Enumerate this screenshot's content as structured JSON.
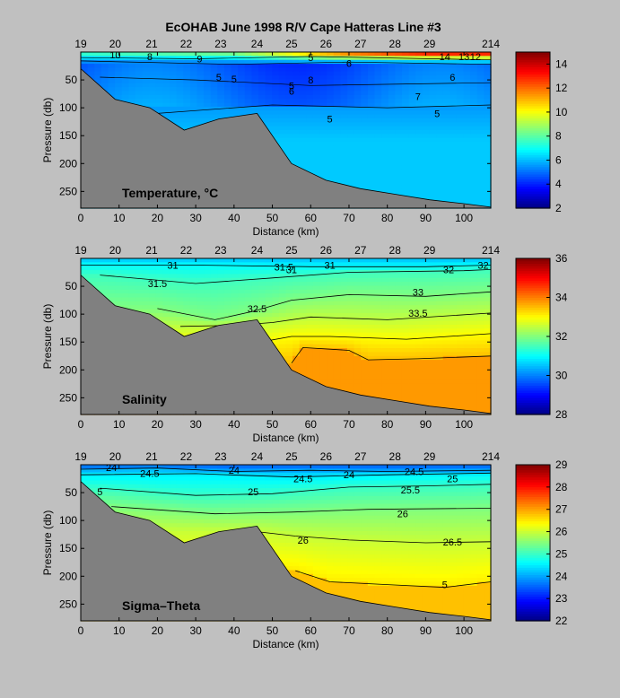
{
  "figure": {
    "title": "EcOHAB   June 1998   R/V Cape Hatteras   Line #3"
  },
  "chart_data": [
    {
      "type": "heatmap",
      "panel_label": "Temperature, °C",
      "xlabel": "Distance (km)",
      "ylabel": "Pressure (db)",
      "xlim": [
        0,
        107
      ],
      "ylim": [
        280,
        0
      ],
      "x_ticks": [
        0,
        10,
        20,
        30,
        40,
        50,
        60,
        70,
        80,
        90,
        100
      ],
      "y_ticks": [
        50,
        100,
        150,
        200,
        250
      ],
      "stations": [
        {
          "label": "19",
          "x": 0
        },
        {
          "label": "20",
          "x": 9
        },
        {
          "label": "21",
          "x": 18.5
        },
        {
          "label": "22",
          "x": 27.5
        },
        {
          "label": "23",
          "x": 36.5
        },
        {
          "label": "24",
          "x": 46
        },
        {
          "label": "25",
          "x": 55
        },
        {
          "label": "26",
          "x": 64
        },
        {
          "label": "27",
          "x": 73
        },
        {
          "label": "28",
          "x": 82
        },
        {
          "label": "29",
          "x": 91
        },
        {
          "label": "214",
          "x": 107
        }
      ],
      "colorbar": {
        "min": 2,
        "max": 15,
        "ticks": [
          2,
          4,
          6,
          8,
          10,
          12,
          14
        ]
      },
      "bottom_profile": [
        [
          0,
          30
        ],
        [
          9,
          85
        ],
        [
          18,
          100
        ],
        [
          27,
          140
        ],
        [
          36,
          120
        ],
        [
          46,
          110
        ],
        [
          55,
          200
        ],
        [
          64,
          230
        ],
        [
          73,
          245
        ],
        [
          82,
          255
        ],
        [
          91,
          265
        ],
        [
          100,
          272
        ],
        [
          107,
          278
        ]
      ],
      "surface_layer": {
        "depths": [
          0,
          2,
          4,
          6,
          8,
          10,
          12,
          14,
          16,
          18,
          20
        ],
        "x": [
          0,
          20,
          40,
          55,
          70,
          90,
          107
        ],
        "surface_values": [
          8,
          8.5,
          9,
          11,
          13,
          14.5,
          14.5
        ]
      },
      "contour_labels": [
        "8",
        "10",
        "9",
        "5",
        "5",
        "5",
        "6",
        "5",
        "6",
        "8",
        "5",
        "6",
        "7",
        "5",
        "14",
        "13",
        "12"
      ]
    },
    {
      "type": "heatmap",
      "panel_label": "Salinity",
      "xlabel": "Distance (km)",
      "ylabel": "Pressure (db)",
      "xlim": [
        0,
        107
      ],
      "ylim": [
        280,
        0
      ],
      "x_ticks": [
        0,
        10,
        20,
        30,
        40,
        50,
        60,
        70,
        80,
        90,
        100
      ],
      "y_ticks": [
        50,
        100,
        150,
        200,
        250
      ],
      "stations": [
        {
          "label": "19",
          "x": 0
        },
        {
          "label": "20",
          "x": 9
        },
        {
          "label": "21",
          "x": 18.5
        },
        {
          "label": "22",
          "x": 27.5
        },
        {
          "label": "23",
          "x": 36.5
        },
        {
          "label": "24",
          "x": 46
        },
        {
          "label": "25",
          "x": 55
        },
        {
          "label": "26",
          "x": 64
        },
        {
          "label": "27",
          "x": 73
        },
        {
          "label": "28",
          "x": 82
        },
        {
          "label": "29",
          "x": 91
        },
        {
          "label": "214",
          "x": 107
        }
      ],
      "colorbar": {
        "min": 28,
        "max": 36,
        "ticks": [
          28,
          30,
          32,
          34,
          36
        ]
      },
      "contours": [
        {
          "level": 31,
          "points": [
            [
              0,
              12
            ],
            [
              30,
              12
            ],
            [
              60,
              15
            ],
            [
              90,
              15
            ],
            [
              107,
              12
            ]
          ]
        },
        {
          "level": 31.5,
          "points": [
            [
              5,
              30
            ],
            [
              30,
              45
            ],
            [
              50,
              35
            ],
            [
              70,
              25
            ],
            [
              100,
              22
            ],
            [
              107,
              20
            ]
          ]
        },
        {
          "level": 32,
          "points": [
            [
              20,
              90
            ],
            [
              35,
              110
            ],
            [
              45,
              95
            ],
            [
              55,
              75
            ],
            [
              70,
              65
            ],
            [
              90,
              68
            ],
            [
              107,
              60
            ]
          ]
        },
        {
          "level": 32.5,
          "points": [
            [
              26,
              122
            ],
            [
              40,
              120
            ],
            [
              50,
              115
            ],
            [
              60,
              105
            ],
            [
              80,
              110
            ],
            [
              107,
              98
            ]
          ]
        },
        {
          "level": 33,
          "points": [
            [
              47,
              150
            ],
            [
              55,
              140
            ],
            [
              65,
              140
            ],
            [
              85,
              145
            ],
            [
              107,
              135
            ]
          ]
        },
        {
          "level": 33.5,
          "points": [
            [
              55,
              188
            ],
            [
              58,
              160
            ],
            [
              70,
              165
            ],
            [
              75,
              182
            ],
            [
              88,
              180
            ],
            [
              107,
              175
            ]
          ]
        }
      ],
      "contour_labels": [
        "31",
        "31.5",
        "31",
        "31.5",
        "31",
        "32",
        "32",
        "32.5",
        "33",
        "33.5"
      ],
      "bottom_profile": [
        [
          0,
          30
        ],
        [
          9,
          85
        ],
        [
          18,
          100
        ],
        [
          27,
          140
        ],
        [
          36,
          120
        ],
        [
          46,
          110
        ],
        [
          55,
          200
        ],
        [
          64,
          230
        ],
        [
          73,
          245
        ],
        [
          82,
          255
        ],
        [
          91,
          265
        ],
        [
          100,
          272
        ],
        [
          107,
          278
        ]
      ]
    },
    {
      "type": "heatmap",
      "panel_label": "Sigma–Theta",
      "xlabel": "Distance (km)",
      "ylabel": "Pressure (db)",
      "xlim": [
        0,
        107
      ],
      "ylim": [
        280,
        0
      ],
      "x_ticks": [
        0,
        10,
        20,
        30,
        40,
        50,
        60,
        70,
        80,
        90,
        100
      ],
      "y_ticks": [
        50,
        100,
        150,
        200,
        250
      ],
      "stations": [
        {
          "label": "19",
          "x": 0
        },
        {
          "label": "20",
          "x": 9
        },
        {
          "label": "21",
          "x": 18.5
        },
        {
          "label": "22",
          "x": 27.5
        },
        {
          "label": "23",
          "x": 36.5
        },
        {
          "label": "24",
          "x": 46
        },
        {
          "label": "25",
          "x": 55
        },
        {
          "label": "26",
          "x": 64
        },
        {
          "label": "27",
          "x": 73
        },
        {
          "label": "28",
          "x": 82
        },
        {
          "label": "29",
          "x": 91
        },
        {
          "label": "214",
          "x": 107
        }
      ],
      "colorbar": {
        "min": 22,
        "max": 29,
        "ticks": [
          22,
          23,
          24,
          25,
          26,
          27,
          28,
          29
        ]
      },
      "contours": [
        {
          "level": 24,
          "points": [
            [
              0,
              8
            ],
            [
              20,
              6
            ],
            [
              40,
              12
            ],
            [
              60,
              10
            ],
            [
              80,
              12
            ],
            [
              107,
              10
            ]
          ]
        },
        {
          "level": 24.5,
          "points": [
            [
              0,
              18
            ],
            [
              30,
              16
            ],
            [
              55,
              22
            ],
            [
              80,
              18
            ],
            [
              107,
              15
            ]
          ]
        },
        {
          "level": 25,
          "points": [
            [
              5,
              42
            ],
            [
              30,
              55
            ],
            [
              50,
              52
            ],
            [
              70,
              40
            ],
            [
              90,
              38
            ],
            [
              107,
              35
            ]
          ]
        },
        {
          "level": 25.5,
          "points": [
            [
              8,
              75
            ],
            [
              35,
              88
            ],
            [
              55,
              85
            ],
            [
              75,
              80
            ],
            [
              107,
              78
            ]
          ]
        },
        {
          "level": 26,
          "points": [
            [
              46,
              120
            ],
            [
              56,
              128
            ],
            [
              70,
              135
            ],
            [
              90,
              140
            ],
            [
              107,
              138
            ]
          ]
        },
        {
          "level": 26.5,
          "points": [
            [
              56,
              190
            ],
            [
              65,
              210
            ],
            [
              80,
              215
            ],
            [
              95,
              220
            ],
            [
              107,
              210
            ]
          ]
        }
      ],
      "contour_labels": [
        "24",
        "24.5",
        "24",
        "24.5",
        "24",
        "24.5",
        "25",
        "25",
        "25.5",
        "26",
        "26",
        "26.5",
        "5",
        "5"
      ],
      "bottom_profile": [
        [
          0,
          30
        ],
        [
          9,
          85
        ],
        [
          18,
          100
        ],
        [
          27,
          140
        ],
        [
          36,
          120
        ],
        [
          46,
          110
        ],
        [
          55,
          200
        ],
        [
          64,
          230
        ],
        [
          73,
          245
        ],
        [
          82,
          255
        ],
        [
          91,
          265
        ],
        [
          100,
          272
        ],
        [
          107,
          278
        ]
      ]
    }
  ]
}
